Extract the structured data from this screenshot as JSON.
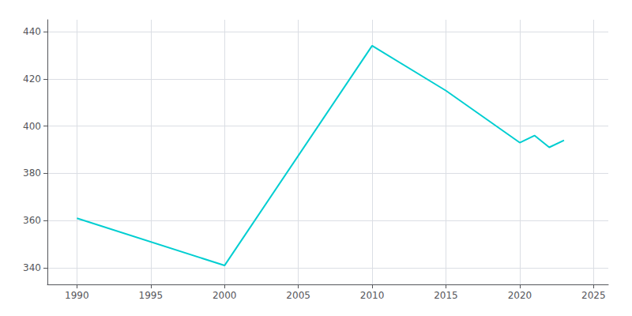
{
  "chart_data": {
    "type": "line",
    "x": [
      1990,
      2000,
      2010,
      2015,
      2020,
      2021,
      2022,
      2023
    ],
    "values": [
      361,
      341,
      434,
      415,
      393,
      396,
      391,
      394
    ],
    "color": "#00CED1",
    "xlim": [
      1988,
      2026
    ],
    "ylim": [
      333,
      445
    ],
    "xticks": [
      1990,
      1995,
      2000,
      2005,
      2010,
      2015,
      2020,
      2025
    ],
    "yticks": [
      340,
      360,
      380,
      400,
      420,
      440
    ],
    "grid": true
  }
}
